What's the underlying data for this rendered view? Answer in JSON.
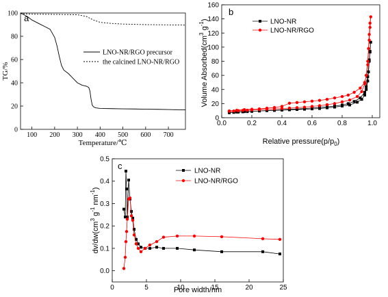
{
  "chart_data": [
    {
      "panel": "a",
      "type": "line",
      "xlabel": "Temperature/℃",
      "ylabel": "TG/%",
      "xlim": [
        50,
        775
      ],
      "ylim": [
        0,
        100
      ],
      "xticks": [
        100,
        200,
        300,
        400,
        500,
        600,
        700
      ],
      "yticks": [
        0,
        20,
        40,
        60,
        80,
        100
      ],
      "legend_position": "center-right",
      "series": [
        {
          "name": "LNO-NR/RGO precursor",
          "style": "solid",
          "x": [
            50,
            80,
            100,
            130,
            160,
            180,
            200,
            210,
            220,
            230,
            240,
            260,
            280,
            300,
            320,
            340,
            350,
            355,
            360,
            365,
            370,
            380,
            400,
            450,
            500,
            550,
            600,
            650,
            700,
            750,
            775
          ],
          "y": [
            100,
            97,
            94,
            91,
            88,
            86,
            79,
            72,
            63,
            55,
            51,
            48,
            44,
            40,
            38,
            37,
            36,
            33,
            26,
            21,
            19.5,
            18.5,
            18,
            17.8,
            17.6,
            17.5,
            17.3,
            17.2,
            17.0,
            16.8,
            16.7
          ]
        },
        {
          "name": "the calcined LNO-NR/RGO",
          "style": "dotted",
          "x": [
            50,
            100,
            200,
            300,
            340,
            370,
            400,
            450,
            500,
            600,
            700,
            775
          ],
          "y": [
            99.5,
            99,
            98.8,
            98.5,
            97,
            94,
            92,
            91,
            90.5,
            90,
            89.8,
            89.6
          ]
        }
      ]
    },
    {
      "panel": "b",
      "type": "line",
      "xlabel": "Relative pressure(p/p0)",
      "ylabel": "Volume Absorbed(cm3 g-1)",
      "xlim": [
        0,
        1.05
      ],
      "ylim": [
        0,
        160
      ],
      "xticks": [
        0.0,
        0.2,
        0.4,
        0.6,
        0.8,
        1.0
      ],
      "yticks": [
        0,
        20,
        40,
        60,
        80,
        100,
        120,
        140,
        160
      ],
      "legend_position": "top-left",
      "series": [
        {
          "name": "LNO-NR",
          "color": "#000000",
          "marker": "square",
          "x": [
            0.05,
            0.08,
            0.11,
            0.14,
            0.17,
            0.2,
            0.25,
            0.3,
            0.35,
            0.4,
            0.45,
            0.5,
            0.55,
            0.6,
            0.65,
            0.7,
            0.75,
            0.8,
            0.85,
            0.9,
            0.93,
            0.95,
            0.96,
            0.97,
            0.975,
            0.98,
            0.985,
            0.99,
            0.985,
            0.98,
            0.97,
            0.96,
            0.95,
            0.92,
            0.88,
            0.84,
            0.8,
            0.75,
            0.7,
            0.65,
            0.6,
            0.55,
            0.5,
            0.45,
            0.4,
            0.35,
            0.3,
            0.25,
            0.2,
            0.15,
            0.1,
            0.05
          ],
          "y": [
            7,
            7.5,
            8,
            8.3,
            8.6,
            9,
            9.5,
            10,
            10.3,
            10.8,
            11.2,
            11.6,
            12,
            12.5,
            13,
            14,
            15,
            16.5,
            18,
            22,
            26,
            32,
            40,
            52,
            65,
            80,
            93,
            107,
            94,
            82,
            58,
            44,
            36,
            28,
            23,
            20,
            18,
            16.5,
            15.5,
            14.5,
            13.8,
            13,
            12.3,
            11.8,
            11.2,
            10.6,
            10.1,
            9.6,
            9.1,
            8.6,
            8,
            7.3
          ]
        },
        {
          "name": "LNO-NR/RGO",
          "color": "#ff0000",
          "marker": "circle",
          "x": [
            0.05,
            0.08,
            0.11,
            0.14,
            0.17,
            0.2,
            0.25,
            0.3,
            0.35,
            0.4,
            0.45,
            0.5,
            0.55,
            0.6,
            0.65,
            0.7,
            0.75,
            0.8,
            0.85,
            0.9,
            0.93,
            0.95,
            0.96,
            0.97,
            0.975,
            0.98,
            0.985,
            0.99,
            0.985,
            0.98,
            0.97,
            0.96,
            0.95,
            0.92,
            0.88,
            0.84,
            0.8,
            0.75,
            0.7,
            0.65,
            0.6,
            0.55,
            0.5,
            0.45,
            0.4,
            0.35,
            0.3,
            0.25,
            0.2,
            0.15,
            0.1,
            0.05
          ],
          "y": [
            9,
            9.5,
            10,
            10.3,
            10.6,
            11,
            11.5,
            12,
            12.5,
            13,
            13.6,
            14.2,
            15,
            16,
            17,
            18.5,
            20,
            22.5,
            25,
            30,
            37,
            48,
            60,
            80,
            98,
            118,
            134,
            143,
            128,
            110,
            75,
            60,
            50,
            42,
            36,
            32,
            30,
            28,
            26,
            24.5,
            23.5,
            22.5,
            21.5,
            20.5,
            16,
            14.5,
            13.5,
            12.5,
            12,
            11.5,
            10.5,
            9.6
          ]
        }
      ]
    },
    {
      "panel": "c",
      "type": "line",
      "xlabel": "Pore width/nm",
      "ylabel": "dv/dw(cm3 g-1 nm-1)",
      "xlim": [
        0,
        25
      ],
      "ylim": [
        -0.05,
        0.5
      ],
      "xticks": [
        0,
        5,
        10,
        15,
        20,
        25
      ],
      "yticks": [
        0.0,
        0.1,
        0.2,
        0.3,
        0.4,
        0.5
      ],
      "legend_position": "top-right",
      "series": [
        {
          "name": "LNO-NR",
          "color": "#000000",
          "marker": "square",
          "x": [
            1.7,
            1.9,
            2.0,
            2.1,
            2.2,
            2.4,
            2.6,
            2.8,
            3.0,
            3.2,
            3.5,
            3.8,
            4.2,
            4.8,
            5.5,
            6.5,
            7.5,
            9.5,
            12,
            16,
            22,
            24.5
          ],
          "y": [
            0.275,
            0.24,
            0.445,
            0.365,
            0.24,
            0.405,
            0.32,
            0.265,
            0.235,
            0.185,
            0.14,
            0.12,
            0.105,
            0.1,
            0.1,
            0.105,
            0.1,
            0.1,
            0.093,
            0.085,
            0.085,
            0.075
          ]
        },
        {
          "name": "LNO-NR/RGO",
          "color": "#ff0000",
          "marker": "circle",
          "x": [
            1.7,
            1.9,
            2.0,
            2.1,
            2.2,
            2.4,
            2.6,
            2.8,
            3.0,
            3.2,
            3.5,
            3.8,
            4.2,
            4.8,
            5.5,
            6.5,
            7.5,
            9.5,
            12,
            16,
            22,
            24.5
          ],
          "y": [
            0.01,
            0.06,
            0.13,
            0.175,
            0.23,
            0.32,
            0.325,
            0.245,
            0.225,
            0.16,
            0.12,
            0.1,
            0.085,
            0.1,
            0.115,
            0.13,
            0.15,
            0.155,
            0.155,
            0.152,
            0.143,
            0.14
          ]
        }
      ]
    }
  ]
}
